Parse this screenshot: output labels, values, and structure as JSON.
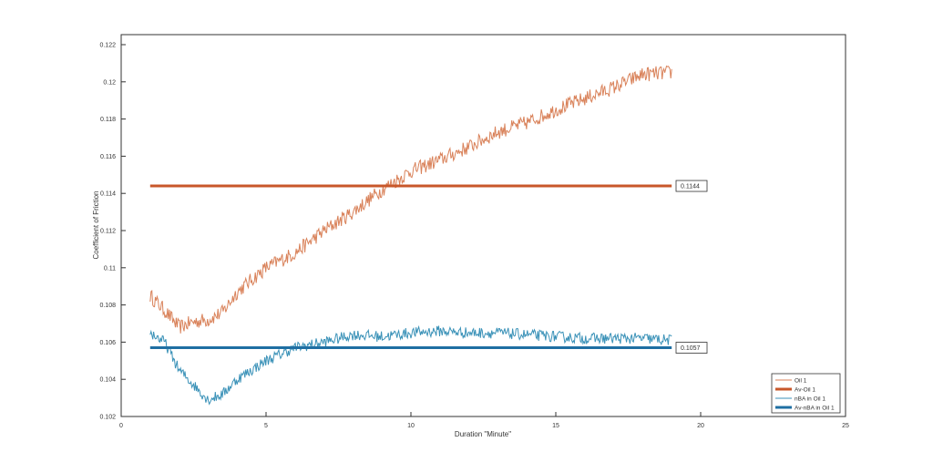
{
  "chart_data": {
    "type": "line",
    "title": "",
    "xlabel": "Duration \"Minute\"",
    "ylabel": "Coefficient of Friction",
    "xlim": [
      0,
      25
    ],
    "ylim": [
      0.102,
      0.12255
    ],
    "xticks": [
      0,
      5,
      10,
      15,
      20,
      25
    ],
    "yticks": [
      0.102,
      0.104,
      0.106,
      0.108,
      0.11,
      0.112,
      0.114,
      0.116,
      0.118,
      0.12,
      0.122
    ],
    "ytick_labels": [
      "0.102",
      "0.104",
      "0.106",
      "0.108",
      "0.11",
      "0.112",
      "0.114",
      "0.116",
      "0.118",
      "0.12",
      "0.122"
    ],
    "grid": false,
    "legend_position": "bottom-right",
    "series": [
      {
        "name": "Oil 1",
        "color": "#D9825A",
        "width": 1,
        "noise": 0.0004,
        "x": [
          1,
          1.5,
          2,
          2.5,
          3,
          3.5,
          4,
          5,
          6,
          7,
          8,
          9,
          10,
          11,
          12,
          13,
          14,
          15,
          16,
          17,
          18,
          19
        ],
        "y": [
          0.1085,
          0.1077,
          0.1068,
          0.1071,
          0.1072,
          0.1076,
          0.1087,
          0.11,
          0.1108,
          0.112,
          0.113,
          0.1142,
          0.1152,
          0.1158,
          0.1165,
          0.1173,
          0.1178,
          0.1185,
          0.1191,
          0.1197,
          0.1204,
          0.1205
        ]
      },
      {
        "name": "Av-Oil 1",
        "color": "#C8572A",
        "width": 3,
        "x": [
          1,
          19
        ],
        "y": [
          0.1144,
          0.1144
        ],
        "label": "0.1144"
      },
      {
        "name": "nBA in Oil 1",
        "color": "#3B92B8",
        "width": 1,
        "noise": 0.0003,
        "x": [
          1,
          1.5,
          2,
          2.5,
          3,
          3.5,
          4,
          5,
          6,
          7,
          8,
          9,
          10,
          11,
          12,
          13,
          14,
          15,
          16,
          17,
          18,
          19
        ],
        "y": [
          0.1065,
          0.106,
          0.1045,
          0.1037,
          0.1029,
          0.1032,
          0.104,
          0.105,
          0.1057,
          0.106,
          0.1064,
          0.1063,
          0.1065,
          0.1066,
          0.1065,
          0.1065,
          0.1064,
          0.1063,
          0.1062,
          0.1062,
          0.1062,
          0.1061
        ]
      },
      {
        "name": "Av-nBA in Oil 1",
        "color": "#1F6FA3",
        "width": 3,
        "x": [
          1,
          19
        ],
        "y": [
          0.1057,
          0.1057
        ],
        "label": "0.1057"
      }
    ]
  }
}
